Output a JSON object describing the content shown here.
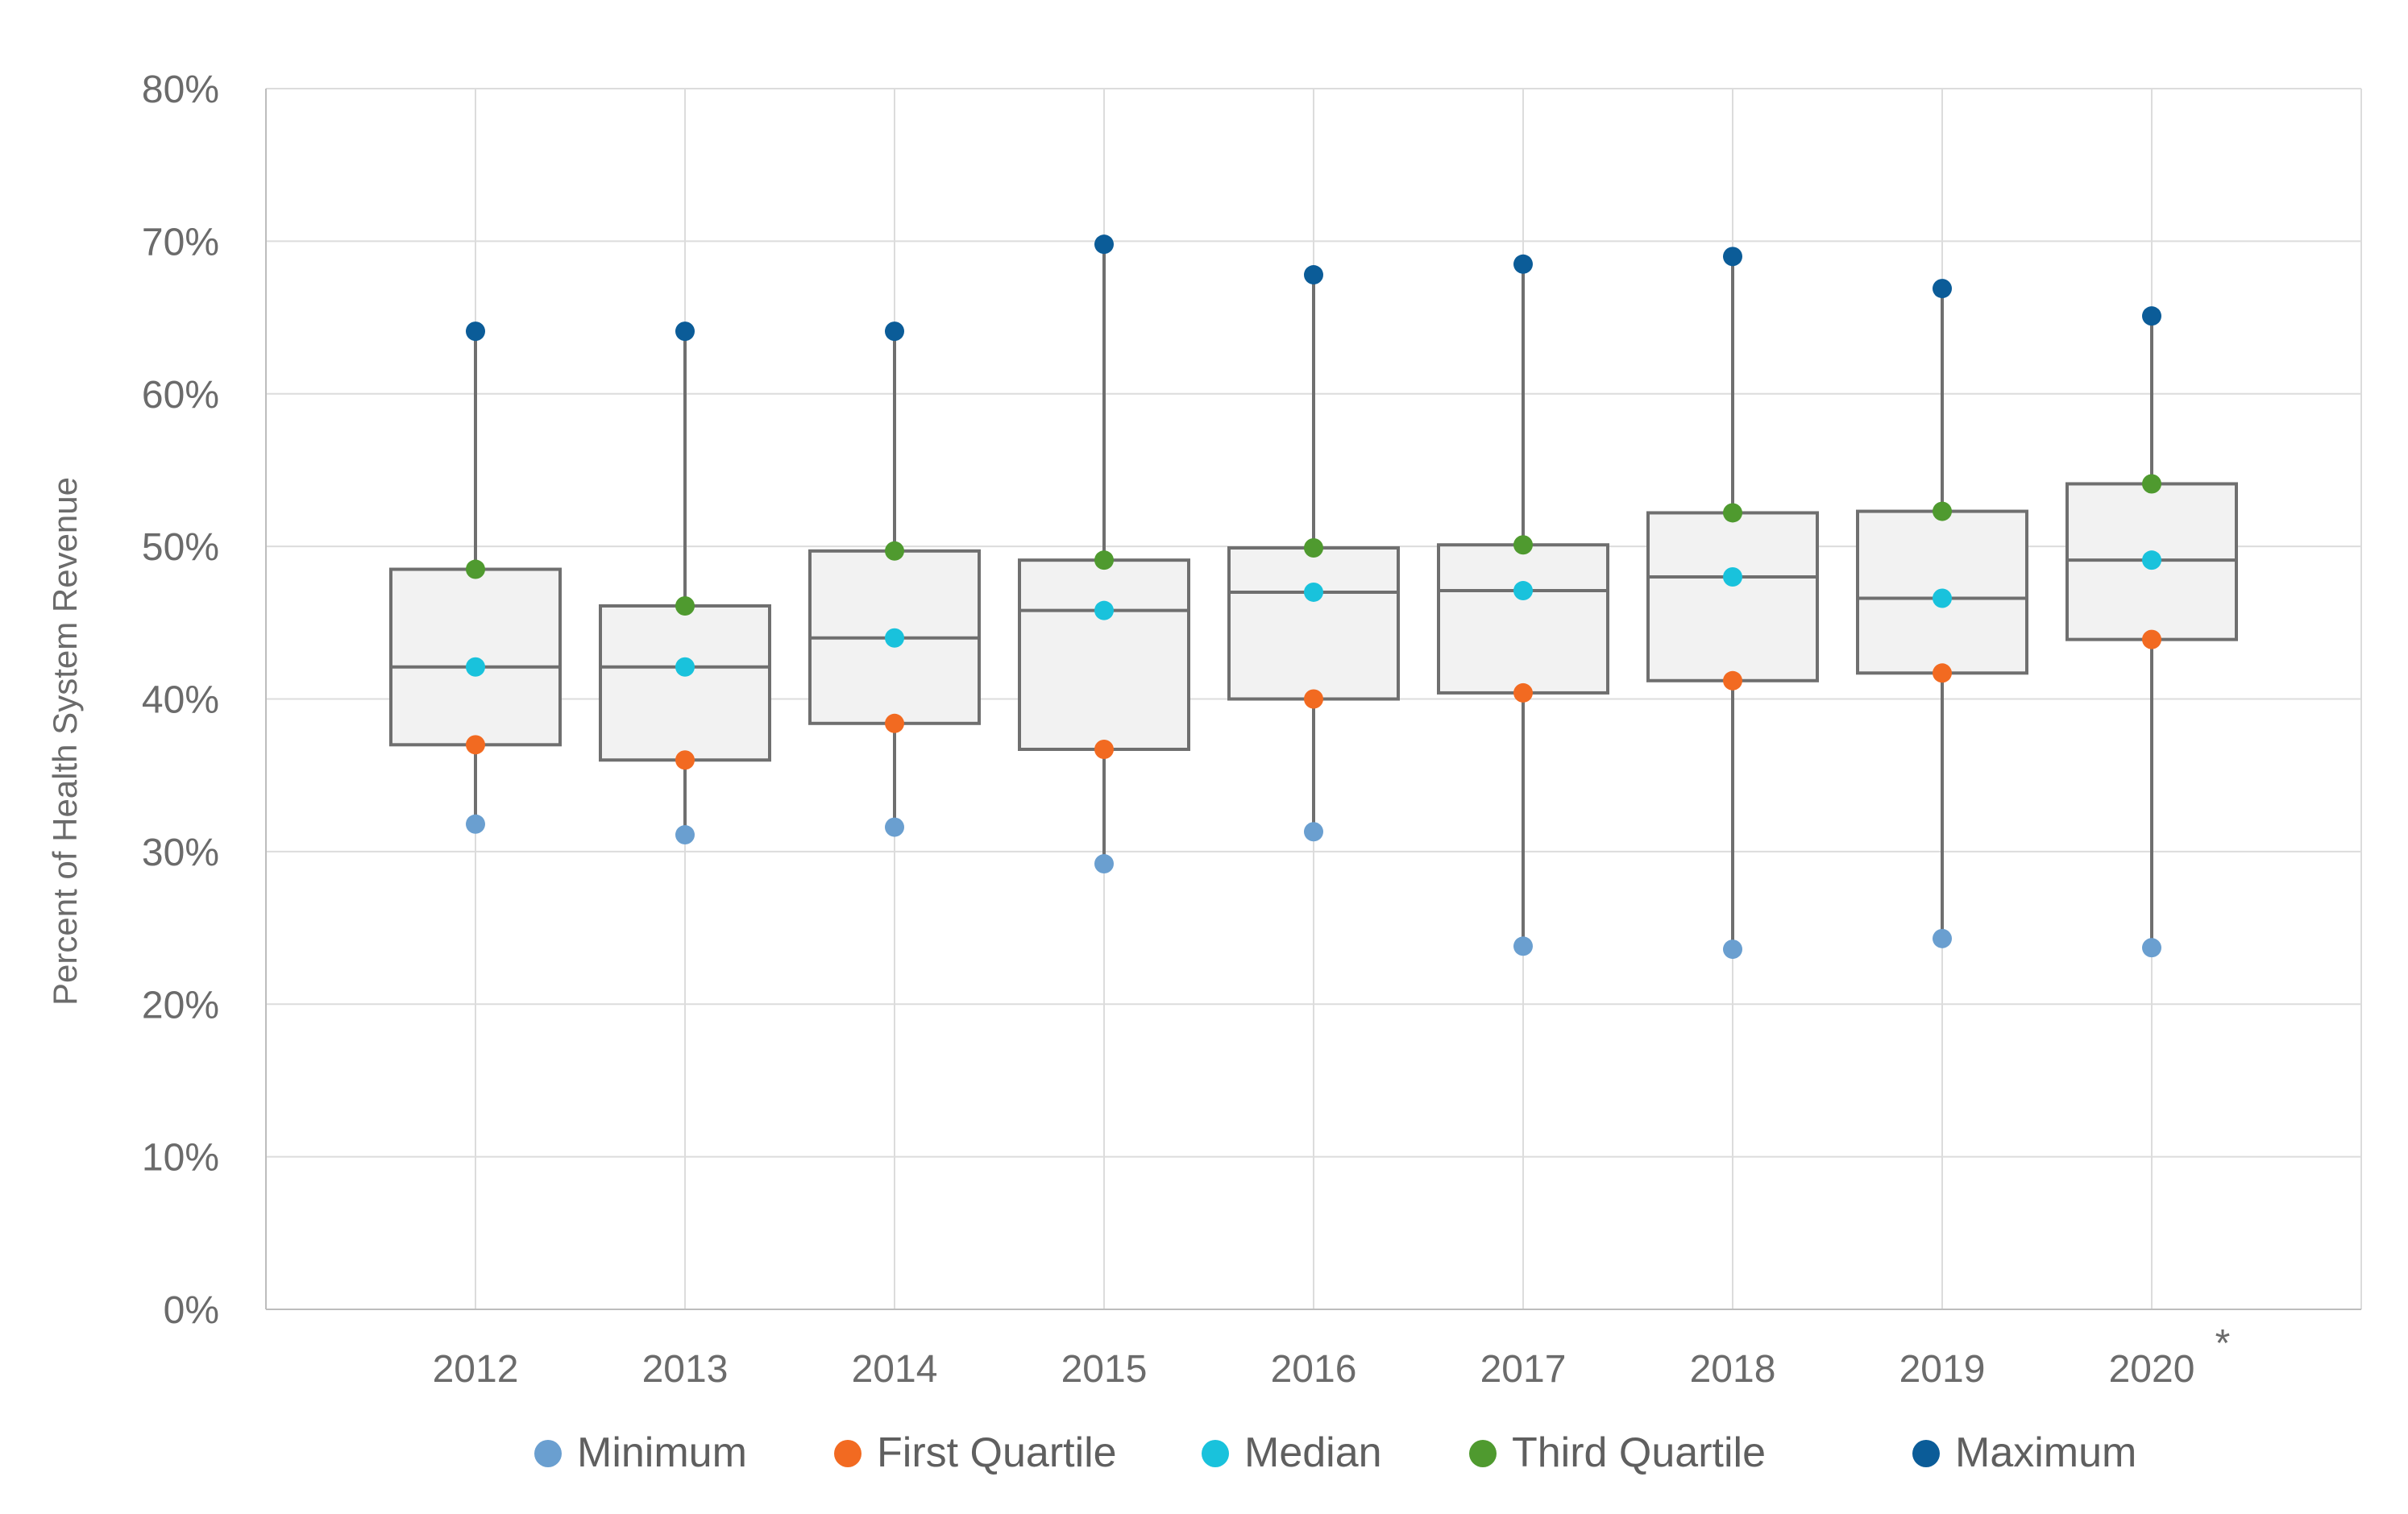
{
  "chart_data": {
    "type": "box",
    "title": "",
    "xlabel": "",
    "ylabel": "Percent of Health System Revenue",
    "ylim": [
      0,
      80
    ],
    "y_ticks": [
      "0%",
      "10%",
      "20%",
      "30%",
      "40%",
      "50%",
      "60%",
      "70%",
      "80%"
    ],
    "y_tick_values": [
      0,
      10,
      20,
      30,
      40,
      50,
      60,
      70,
      80
    ],
    "grid": true,
    "legend_position": "bottom",
    "categories": [
      "2012",
      "2013",
      "2014",
      "2015",
      "2016",
      "2017",
      "2018",
      "2019",
      "2020"
    ],
    "category_notes": [
      "",
      "",
      "",
      "",
      "",
      "",
      "",
      "",
      "*"
    ],
    "series": [
      {
        "name": "Minimum",
        "color": "#6a9fd0",
        "values": [
          31.8,
          31.1,
          31.6,
          29.2,
          31.3,
          23.8,
          23.6,
          24.3,
          23.7
        ]
      },
      {
        "name": "First Quartile",
        "color": "#f26a21",
        "values": [
          37.0,
          36.0,
          38.4,
          36.7,
          40.0,
          40.4,
          41.2,
          41.7,
          43.9
        ]
      },
      {
        "name": "Median",
        "color": "#19c2dc",
        "values": [
          42.1,
          42.1,
          44.0,
          45.8,
          47.0,
          47.1,
          48.0,
          46.6,
          49.1
        ]
      },
      {
        "name": "Third Quartile",
        "color": "#4f9a2f",
        "values": [
          48.5,
          46.1,
          49.7,
          49.1,
          49.9,
          50.1,
          52.2,
          52.3,
          54.1
        ]
      },
      {
        "name": "Maximum",
        "color": "#0b5c98",
        "values": [
          64.1,
          64.1,
          64.1,
          69.8,
          67.8,
          68.5,
          69.0,
          66.9,
          65.1
        ]
      }
    ],
    "colors": {
      "box_fill": "#f2f2f2",
      "box_stroke": "#6f6f6f",
      "grid": "#dcdcdc"
    }
  }
}
